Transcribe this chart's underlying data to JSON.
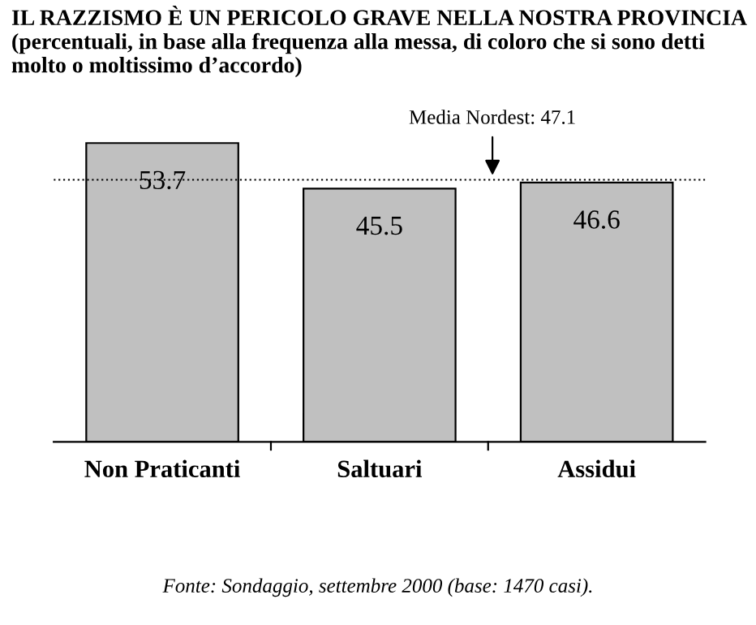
{
  "chart_data": {
    "type": "bar",
    "title": "IL RAZZISMO È UN PERICOLO GRAVE NELLA NOSTRA PROVINCIA",
    "subtitle": "(percentuali, in base alla frequenza alla messa, di coloro che si sono detti molto o moltissimo d’accordo)",
    "categories": [
      "Non Praticanti",
      "Saltuari",
      "Assidui"
    ],
    "values": [
      53.7,
      45.5,
      46.6
    ],
    "color": "#c0c0c0",
    "data_labels": true,
    "ref_lines": [
      {
        "axis": "y",
        "value": 47.1,
        "label": "Media Nordest: 47.1",
        "line_style": "dotted",
        "color": "#000000"
      }
    ],
    "annotations": [
      "Fonte: Sondaggio, settembre 2000 (base: 1470 casi)."
    ],
    "grid": false,
    "legend": false
  }
}
